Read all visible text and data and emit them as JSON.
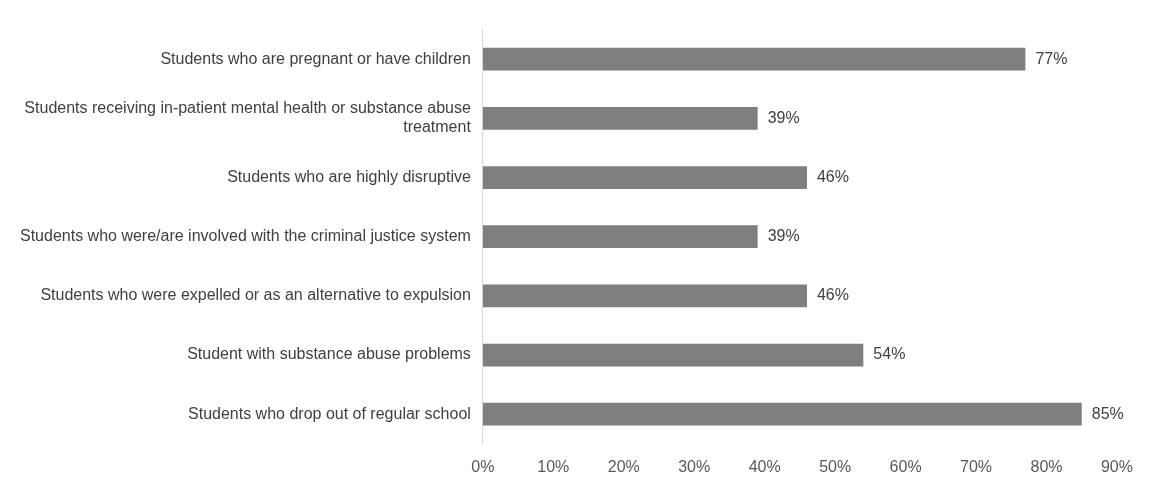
{
  "chart_data": {
    "type": "bar",
    "orientation": "horizontal",
    "categories": [
      "Students who are pregnant or have children",
      "Students receiving in-patient mental health or substance abuse treatment",
      "Students who are highly disruptive",
      "Students who were/are involved with the criminal justice system",
      "Students who were expelled or as an alternative to expulsion",
      "Student with substance abuse problems",
      "Students who drop out of regular school"
    ],
    "values": [
      77,
      39,
      46,
      39,
      46,
      54,
      85
    ],
    "color": "#7f7f7f",
    "value_labels": [
      "77%",
      "39%",
      "46%",
      "39%",
      "46%",
      "54%",
      "85%"
    ],
    "xlim": [
      0,
      90
    ],
    "xticks": [
      {
        "value": 0,
        "label": "0%"
      },
      {
        "value": 10,
        "label": "10%"
      },
      {
        "value": 20,
        "label": "20%"
      },
      {
        "value": 30,
        "label": "30%"
      },
      {
        "value": 40,
        "label": "40%"
      },
      {
        "value": 50,
        "label": "50%"
      },
      {
        "value": 60,
        "label": "60%"
      },
      {
        "value": 70,
        "label": "70%"
      },
      {
        "value": 80,
        "label": "80%"
      },
      {
        "value": 90,
        "label": "90%"
      }
    ],
    "grid": false,
    "legend": false
  }
}
